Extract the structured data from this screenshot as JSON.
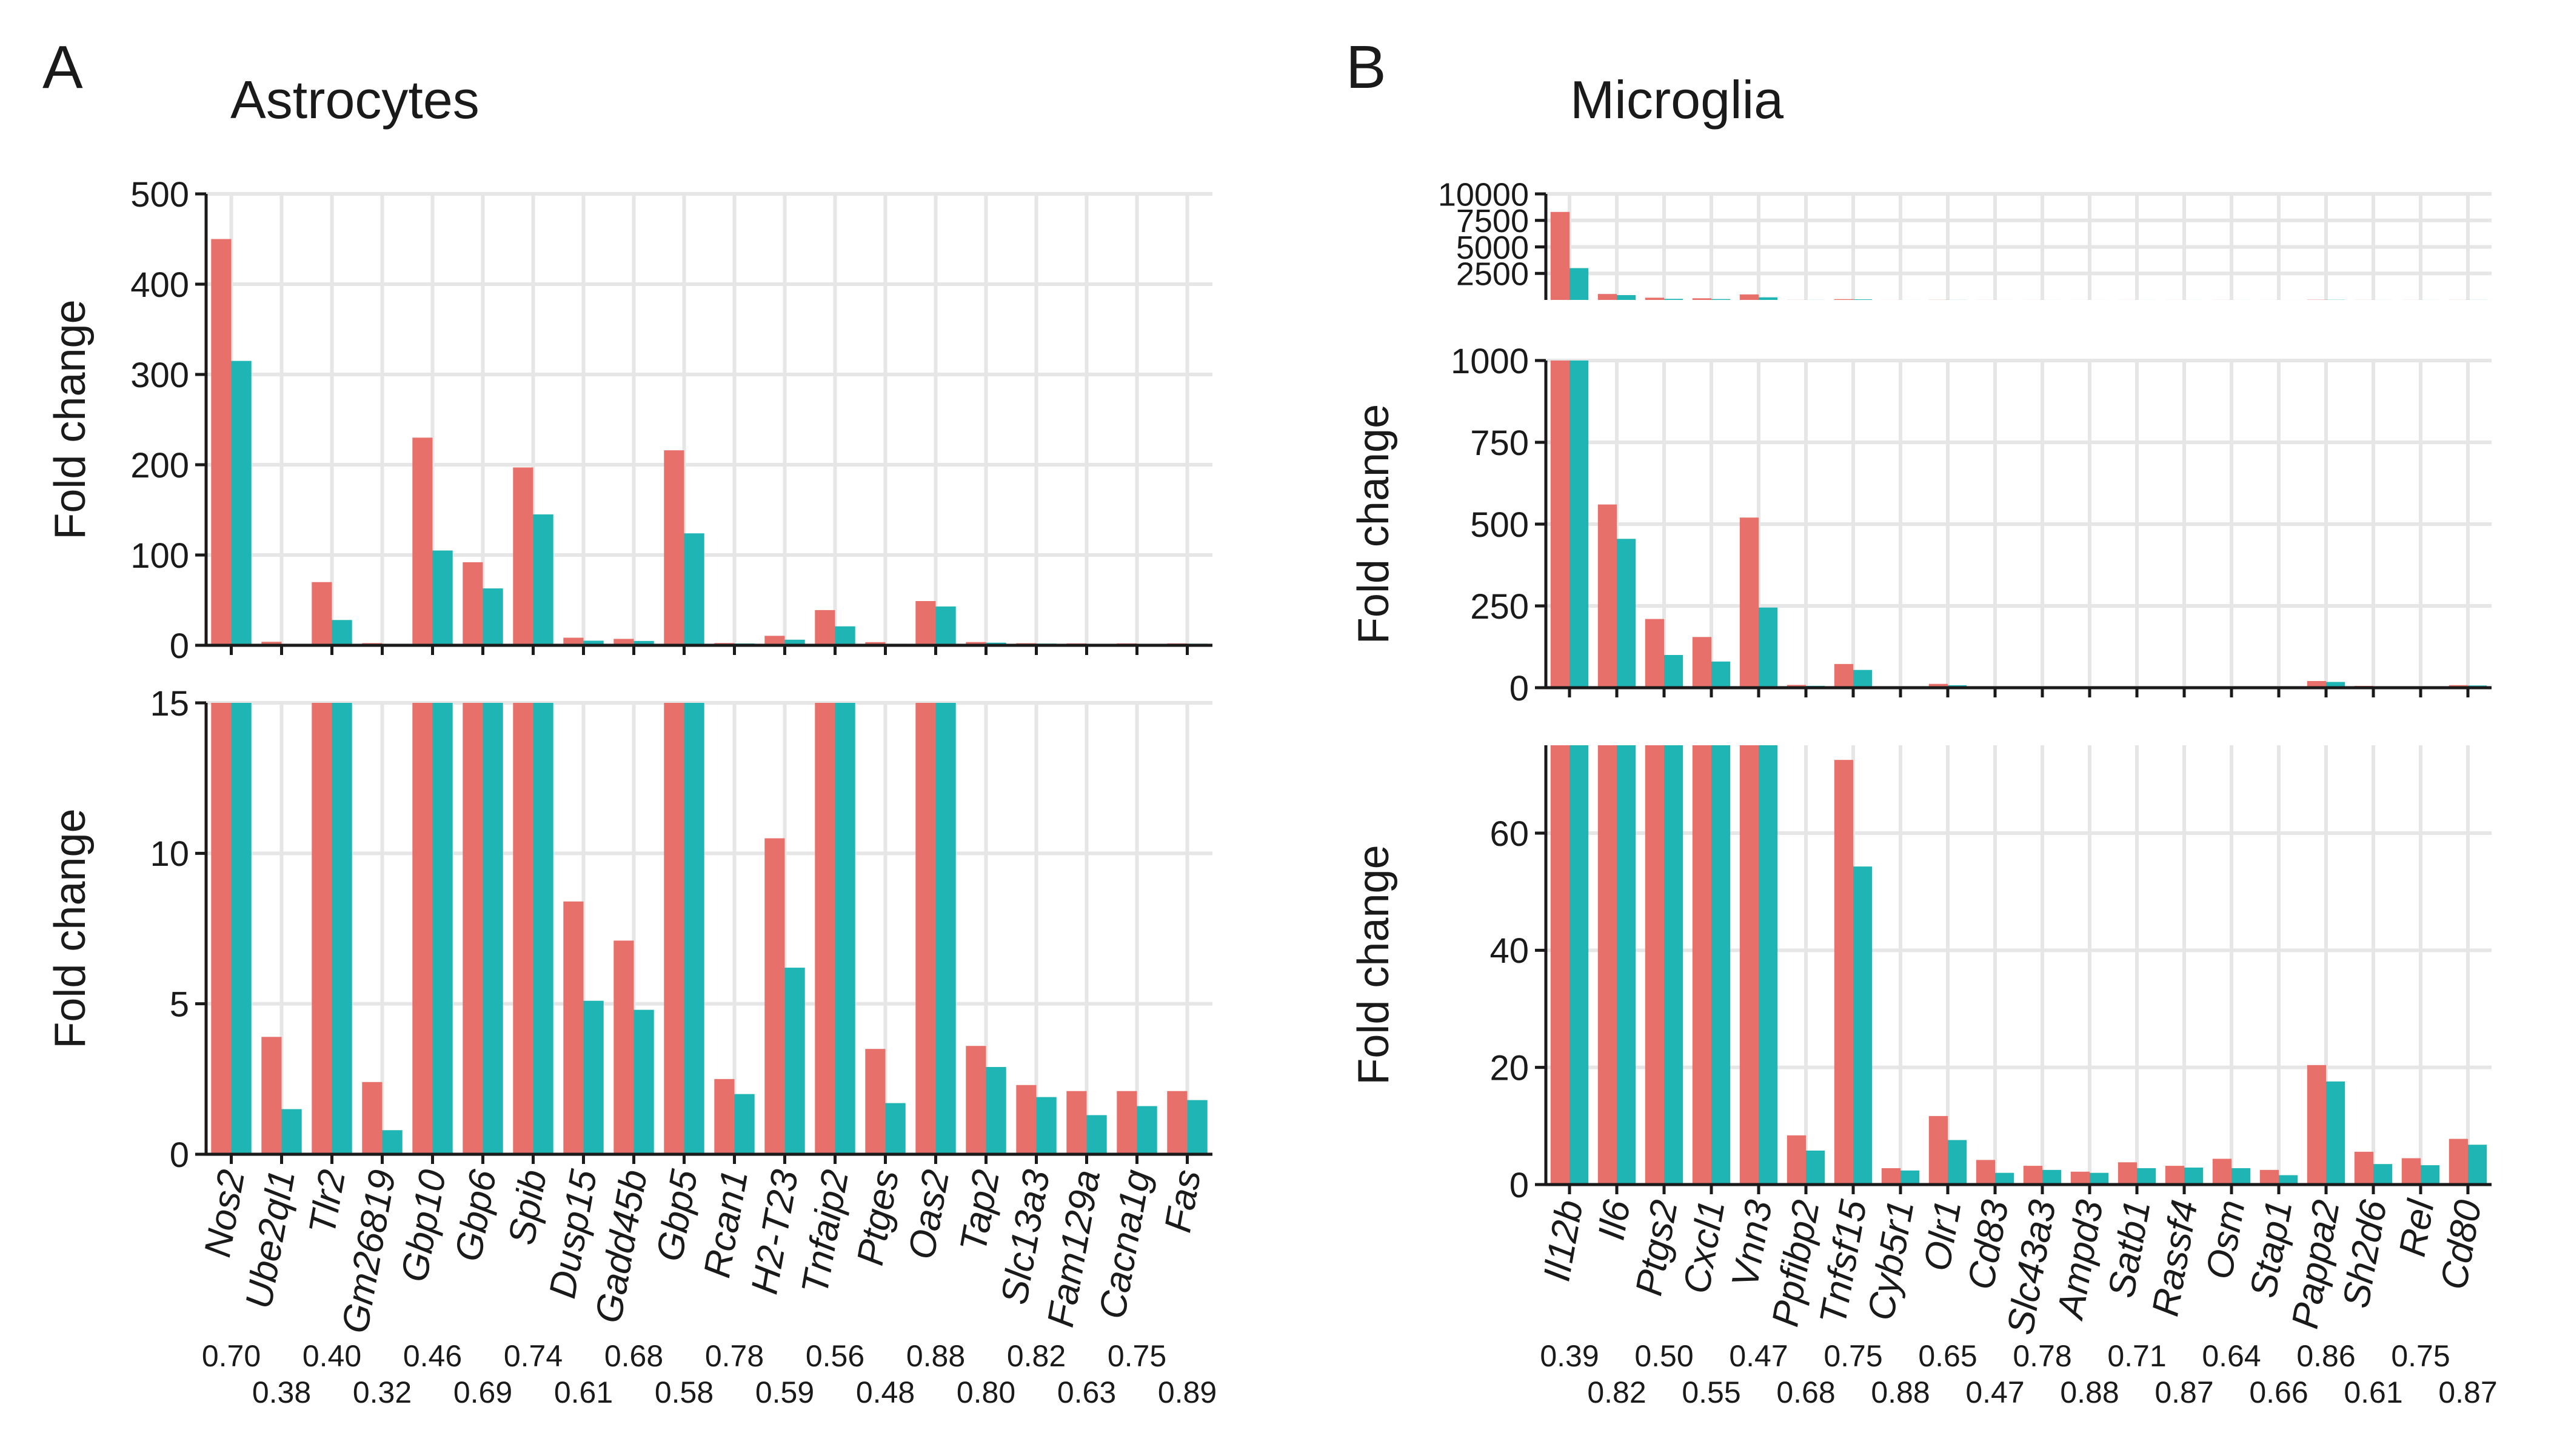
{
  "colors": {
    "series1": "#E8706B",
    "series2": "#1FB5B5",
    "grid": "#E6E6E6",
    "axis": "#1a1a1a",
    "text": "#1a1a1a"
  },
  "panels": [
    {
      "letter": "A",
      "title": "Astrocytes",
      "genes": [
        "Nos2",
        "Ube2ql1",
        "Tlr2",
        "Gm26819",
        "Gbp10",
        "Gbp6",
        "Spib",
        "Dusp15",
        "Gadd45b",
        "Gbp5",
        "Rcan1",
        "H2-T23",
        "Tnfaip2",
        "Ptges",
        "Oas2",
        "Tap2",
        "Slc13a3",
        "Fam129a",
        "Cacna1g",
        "Fas"
      ],
      "ratios_row1": [
        "0.70",
        "0.40",
        "0.46",
        "0.74",
        "0.68",
        "0.78",
        "0.56",
        "0.88",
        "0.82",
        "0.75"
      ],
      "ratios_row2": [
        "0.38",
        "0.32",
        "0.69",
        "0.61",
        "0.58",
        "0.59",
        "0.48",
        "0.80",
        "0.63",
        "0.89"
      ]
    },
    {
      "letter": "B",
      "title": "Microglia",
      "genes": [
        "Il12b",
        "Il6",
        "Ptgs2",
        "Cxcl1",
        "Vnn3",
        "Ppfibp2",
        "Tnfsf15",
        "Cyb5r1",
        "Olr1",
        "Cd83",
        "Slc43a3",
        "Ampd3",
        "Satb1",
        "Rassf4",
        "Osm",
        "Stap1",
        "Pappa2",
        "Sh2d6",
        "Rel",
        "Cd80"
      ],
      "ratios_row1": [
        "0.39",
        "0.50",
        "0.47",
        "0.75",
        "0.65",
        "0.78",
        "0.71",
        "0.64",
        "0.86",
        "0.75"
      ],
      "ratios_row2": [
        "0.82",
        "0.55",
        "0.68",
        "0.88",
        "0.47",
        "0.88",
        "0.87",
        "0.66",
        "0.61",
        "0.87"
      ]
    }
  ],
  "chart_data": [
    {
      "type": "bar",
      "panel": "A",
      "title": "Astrocytes",
      "ylabel": "Fold change",
      "categories": [
        "Nos2",
        "Ube2ql1",
        "Tlr2",
        "Gm26819",
        "Gbp10",
        "Gbp6",
        "Spib",
        "Dusp15",
        "Gadd45b",
        "Gbp5",
        "Rcan1",
        "H2-T23",
        "Tnfaip2",
        "Ptges",
        "Oas2",
        "Tap2",
        "Slc13a3",
        "Fam129a",
        "Cacna1g",
        "Fas"
      ],
      "series": [
        {
          "name": "series1",
          "values": [
            450,
            3.9,
            70,
            2.4,
            230,
            92,
            197,
            8.4,
            7.1,
            216,
            2.5,
            10.5,
            39,
            3.5,
            49,
            3.6,
            2.3,
            2.1,
            2.1,
            2.1
          ]
        },
        {
          "name": "series2",
          "values": [
            315,
            1.5,
            28,
            0.8,
            105,
            63,
            145,
            5.1,
            4.8,
            124,
            2.0,
            6.2,
            21,
            1.7,
            43,
            2.9,
            1.9,
            1.3,
            1.6,
            1.8
          ]
        }
      ],
      "axes": [
        {
          "ylim": [
            0,
            500
          ],
          "ticks": [
            0,
            100,
            200,
            300,
            400,
            500
          ],
          "tick_labels": [
            "0",
            "100",
            "200",
            "300",
            "400",
            "500"
          ]
        },
        {
          "ylim": [
            0,
            15
          ],
          "ticks": [
            0,
            5,
            10,
            15
          ],
          "tick_labels": [
            "0",
            "5",
            "10",
            "15"
          ]
        }
      ]
    },
    {
      "type": "bar",
      "panel": "B",
      "title": "Microglia",
      "ylabel": "Fold change",
      "categories": [
        "Il12b",
        "Il6",
        "Ptgs2",
        "Cxcl1",
        "Vnn3",
        "Ppfibp2",
        "Tnfsf15",
        "Cyb5r1",
        "Olr1",
        "Cd83",
        "Slc43a3",
        "Ampd3",
        "Satb1",
        "Rassf4",
        "Osm",
        "Stap1",
        "Pappa2",
        "Sh2d6",
        "Rel",
        "Cd80"
      ],
      "series": [
        {
          "name": "series1",
          "values": [
            8300,
            560,
            210,
            155,
            520,
            8.4,
            72.5,
            2.8,
            11.7,
            4.2,
            3.2,
            2.2,
            3.8,
            3.2,
            4.4,
            2.5,
            20.4,
            5.6,
            4.5,
            7.8
          ]
        },
        {
          "name": "series2",
          "values": [
            3000,
            455,
            100,
            80,
            245,
            5.8,
            54.3,
            2.4,
            7.6,
            2.0,
            2.5,
            2.0,
            2.8,
            2.9,
            2.8,
            1.6,
            17.6,
            3.5,
            3.3,
            6.8
          ]
        }
      ],
      "axes": [
        {
          "ylim": [
            0,
            10000
          ],
          "ticks": [
            2500,
            5000,
            7500,
            10000
          ],
          "tick_labels": [
            "2500",
            "5000",
            "7500",
            "10000"
          ]
        },
        {
          "ylim": [
            0,
            1000
          ],
          "ticks": [
            0,
            250,
            500,
            750,
            1000
          ],
          "tick_labels": [
            "0",
            "250",
            "500",
            "750",
            "1000"
          ]
        },
        {
          "ylim": [
            0,
            75
          ],
          "ticks": [
            0,
            20,
            40,
            60
          ],
          "tick_labels": [
            "0",
            "20",
            "40",
            "60"
          ]
        }
      ]
    }
  ]
}
